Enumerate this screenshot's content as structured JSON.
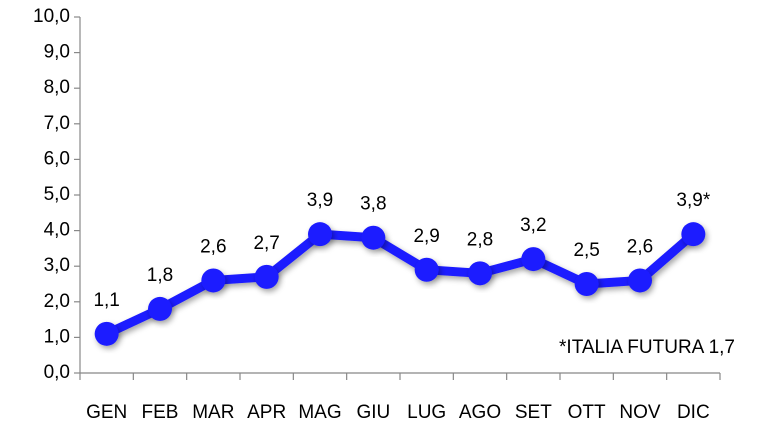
{
  "chart_data": {
    "type": "line",
    "categories": [
      "GEN",
      "FEB",
      "MAR",
      "APR",
      "MAG",
      "GIU",
      "LUG",
      "AGO",
      "SET",
      "OTT",
      "NOV",
      "DIC"
    ],
    "series": [
      {
        "color": "#1a1aff",
        "values": [
          1.1,
          1.8,
          2.6,
          2.7,
          3.9,
          3.8,
          2.9,
          2.8,
          3.2,
          2.5,
          2.6,
          3.9
        ],
        "value_labels": [
          "1,1",
          "1,8",
          "2,6",
          "2,7",
          "3,9",
          "3,8",
          "2,9",
          "2,8",
          "3,2",
          "2,5",
          "2,6",
          "3,9*"
        ]
      }
    ],
    "ylim": [
      0,
      10
    ],
    "yticks": [
      {
        "value": 0,
        "label": "0,0"
      },
      {
        "value": 1,
        "label": "1,0"
      },
      {
        "value": 2,
        "label": "2,0"
      },
      {
        "value": 3,
        "label": "3,0"
      },
      {
        "value": 4,
        "label": "4,0"
      },
      {
        "value": 5,
        "label": "5,0"
      },
      {
        "value": 6,
        "label": "6,0"
      },
      {
        "value": 7,
        "label": "7,0"
      },
      {
        "value": 8,
        "label": "8,0"
      },
      {
        "value": 9,
        "label": "9,0"
      },
      {
        "value": 10,
        "label": "10,0"
      }
    ],
    "grid": false,
    "annotation": "*ITALIA FUTURA 1,7"
  }
}
